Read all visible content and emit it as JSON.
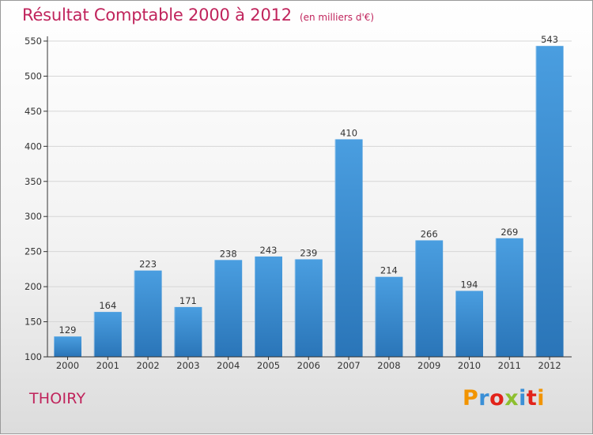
{
  "chart_data": {
    "type": "bar",
    "title": "Résultat Comptable 2000 à 2012",
    "subtitle": "(en milliers d'€)",
    "categories": [
      "2000",
      "2001",
      "2002",
      "2003",
      "2004",
      "2005",
      "2006",
      "2007",
      "2008",
      "2009",
      "2010",
      "2011",
      "2012"
    ],
    "values": [
      129,
      164,
      223,
      171,
      238,
      243,
      239,
      410,
      214,
      266,
      194,
      269,
      543
    ],
    "yticks": [
      100,
      150,
      200,
      250,
      300,
      350,
      400,
      450,
      500,
      550
    ],
    "ylim": [
      100,
      550
    ],
    "xlabel": "",
    "ylabel": "",
    "grid": true,
    "bar_color": "#4a9ee0",
    "bar_color_dark": "#2a75b8"
  },
  "footer": {
    "town": "THOIRY",
    "brand": "Proxiti",
    "brand_colors": [
      "#f29400",
      "#3a8fd6",
      "#e2231a",
      "#8dbf2e",
      "#3a8fd6",
      "#e2231a",
      "#f29400"
    ]
  },
  "colors": {
    "accent": "#c0245c",
    "axis": "#333333"
  }
}
